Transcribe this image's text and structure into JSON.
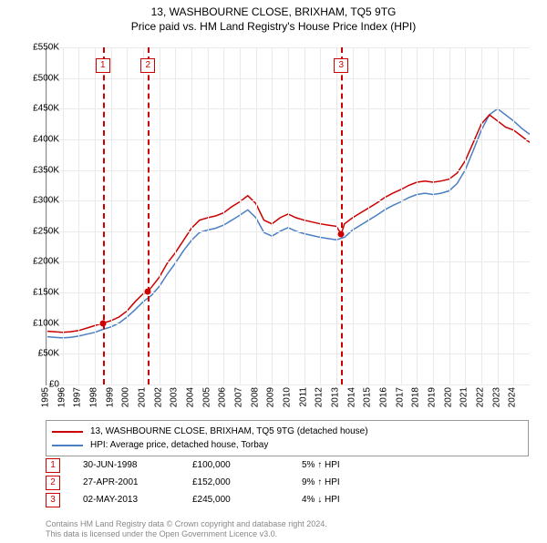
{
  "title": {
    "line1": "13, WASHBOURNE CLOSE, BRIXHAM, TQ5 9TG",
    "line2": "Price paid vs. HM Land Registry's House Price Index (HPI)"
  },
  "chart": {
    "type": "line",
    "xlim": [
      1995,
      2025
    ],
    "ylim": [
      0,
      550000
    ],
    "ytick_step": 50000,
    "yticks": [
      "£0",
      "£50K",
      "£100K",
      "£150K",
      "£200K",
      "£250K",
      "£300K",
      "£350K",
      "£400K",
      "£450K",
      "£500K",
      "£550K"
    ],
    "xticks": [
      "1995",
      "1996",
      "1997",
      "1998",
      "1999",
      "2000",
      "2001",
      "2002",
      "2003",
      "2004",
      "2005",
      "2006",
      "2007",
      "2008",
      "2009",
      "2010",
      "2011",
      "2012",
      "2013",
      "2014",
      "2015",
      "2016",
      "2017",
      "2018",
      "2019",
      "2020",
      "2021",
      "2022",
      "2023",
      "2024"
    ],
    "grid_color": "#eaeaea",
    "background_color": "#ffffff",
    "series": {
      "property": {
        "color": "#cc0000",
        "width": 1.5,
        "data": [
          [
            1995.0,
            87000
          ],
          [
            1995.5,
            86000
          ],
          [
            1996.0,
            85000
          ],
          [
            1996.5,
            86000
          ],
          [
            1997.0,
            88000
          ],
          [
            1997.5,
            92000
          ],
          [
            1998.0,
            96000
          ],
          [
            1998.5,
            100000
          ],
          [
            1999.0,
            104000
          ],
          [
            1999.5,
            110000
          ],
          [
            2000.0,
            120000
          ],
          [
            2000.5,
            135000
          ],
          [
            2001.0,
            148000
          ],
          [
            2001.3,
            152000
          ],
          [
            2001.5,
            158000
          ],
          [
            2002.0,
            175000
          ],
          [
            2002.5,
            198000
          ],
          [
            2003.0,
            215000
          ],
          [
            2003.5,
            235000
          ],
          [
            2004.0,
            255000
          ],
          [
            2004.5,
            268000
          ],
          [
            2005.0,
            272000
          ],
          [
            2005.5,
            275000
          ],
          [
            2006.0,
            280000
          ],
          [
            2006.5,
            290000
          ],
          [
            2007.0,
            298000
          ],
          [
            2007.5,
            308000
          ],
          [
            2008.0,
            295000
          ],
          [
            2008.5,
            268000
          ],
          [
            2009.0,
            262000
          ],
          [
            2009.5,
            272000
          ],
          [
            2010.0,
            278000
          ],
          [
            2010.5,
            272000
          ],
          [
            2011.0,
            268000
          ],
          [
            2011.5,
            265000
          ],
          [
            2012.0,
            262000
          ],
          [
            2012.5,
            260000
          ],
          [
            2013.0,
            258000
          ],
          [
            2013.3,
            245000
          ],
          [
            2013.5,
            262000
          ],
          [
            2014.0,
            272000
          ],
          [
            2014.5,
            280000
          ],
          [
            2015.0,
            288000
          ],
          [
            2015.5,
            296000
          ],
          [
            2016.0,
            305000
          ],
          [
            2016.5,
            312000
          ],
          [
            2017.0,
            318000
          ],
          [
            2017.5,
            325000
          ],
          [
            2018.0,
            330000
          ],
          [
            2018.5,
            332000
          ],
          [
            2019.0,
            330000
          ],
          [
            2019.5,
            332000
          ],
          [
            2020.0,
            335000
          ],
          [
            2020.5,
            345000
          ],
          [
            2021.0,
            365000
          ],
          [
            2021.5,
            395000
          ],
          [
            2022.0,
            425000
          ],
          [
            2022.5,
            440000
          ],
          [
            2023.0,
            430000
          ],
          [
            2023.5,
            420000
          ],
          [
            2024.0,
            415000
          ],
          [
            2024.5,
            405000
          ],
          [
            2025.0,
            395000
          ]
        ]
      },
      "hpi": {
        "color": "#4a7fc4",
        "width": 1.5,
        "data": [
          [
            1995.0,
            78000
          ],
          [
            1995.5,
            77000
          ],
          [
            1996.0,
            76000
          ],
          [
            1996.5,
            77000
          ],
          [
            1997.0,
            79000
          ],
          [
            1997.5,
            82000
          ],
          [
            1998.0,
            85000
          ],
          [
            1998.5,
            90000
          ],
          [
            1999.0,
            94000
          ],
          [
            1999.5,
            100000
          ],
          [
            2000.0,
            110000
          ],
          [
            2000.5,
            122000
          ],
          [
            2001.0,
            135000
          ],
          [
            2001.5,
            145000
          ],
          [
            2002.0,
            160000
          ],
          [
            2002.5,
            180000
          ],
          [
            2003.0,
            198000
          ],
          [
            2003.5,
            218000
          ],
          [
            2004.0,
            235000
          ],
          [
            2004.5,
            248000
          ],
          [
            2005.0,
            252000
          ],
          [
            2005.5,
            255000
          ],
          [
            2006.0,
            260000
          ],
          [
            2006.5,
            268000
          ],
          [
            2007.0,
            276000
          ],
          [
            2007.5,
            285000
          ],
          [
            2008.0,
            272000
          ],
          [
            2008.5,
            248000
          ],
          [
            2009.0,
            242000
          ],
          [
            2009.5,
            250000
          ],
          [
            2010.0,
            256000
          ],
          [
            2010.5,
            250000
          ],
          [
            2011.0,
            246000
          ],
          [
            2011.5,
            243000
          ],
          [
            2012.0,
            240000
          ],
          [
            2012.5,
            238000
          ],
          [
            2013.0,
            236000
          ],
          [
            2013.5,
            240000
          ],
          [
            2014.0,
            252000
          ],
          [
            2014.5,
            260000
          ],
          [
            2015.0,
            268000
          ],
          [
            2015.5,
            276000
          ],
          [
            2016.0,
            285000
          ],
          [
            2016.5,
            292000
          ],
          [
            2017.0,
            298000
          ],
          [
            2017.5,
            305000
          ],
          [
            2018.0,
            310000
          ],
          [
            2018.5,
            312000
          ],
          [
            2019.0,
            310000
          ],
          [
            2019.5,
            312000
          ],
          [
            2020.0,
            316000
          ],
          [
            2020.5,
            328000
          ],
          [
            2021.0,
            350000
          ],
          [
            2021.5,
            382000
          ],
          [
            2022.0,
            415000
          ],
          [
            2022.5,
            440000
          ],
          [
            2023.0,
            450000
          ],
          [
            2023.5,
            440000
          ],
          [
            2024.0,
            430000
          ],
          [
            2024.5,
            418000
          ],
          [
            2025.0,
            408000
          ]
        ]
      }
    },
    "sales": [
      {
        "n": "1",
        "year": 1998.5,
        "value": 100000
      },
      {
        "n": "2",
        "year": 2001.3,
        "value": 152000
      },
      {
        "n": "3",
        "year": 2013.3,
        "value": 245000
      }
    ]
  },
  "legend": {
    "items": [
      {
        "color": "#cc0000",
        "label": "13, WASHBOURNE CLOSE, BRIXHAM, TQ5 9TG (detached house)"
      },
      {
        "color": "#4a7fc4",
        "label": "HPI: Average price, detached house, Torbay"
      }
    ]
  },
  "sales_table": [
    {
      "n": "1",
      "date": "30-JUN-1998",
      "price": "£100,000",
      "pct": "5% ↑ HPI"
    },
    {
      "n": "2",
      "date": "27-APR-2001",
      "price": "£152,000",
      "pct": "9% ↑ HPI"
    },
    {
      "n": "3",
      "date": "02-MAY-2013",
      "price": "£245,000",
      "pct": "4% ↓ HPI"
    }
  ],
  "attribution": {
    "line1": "Contains HM Land Registry data © Crown copyright and database right 2024.",
    "line2": "This data is licensed under the Open Government Licence v3.0."
  }
}
